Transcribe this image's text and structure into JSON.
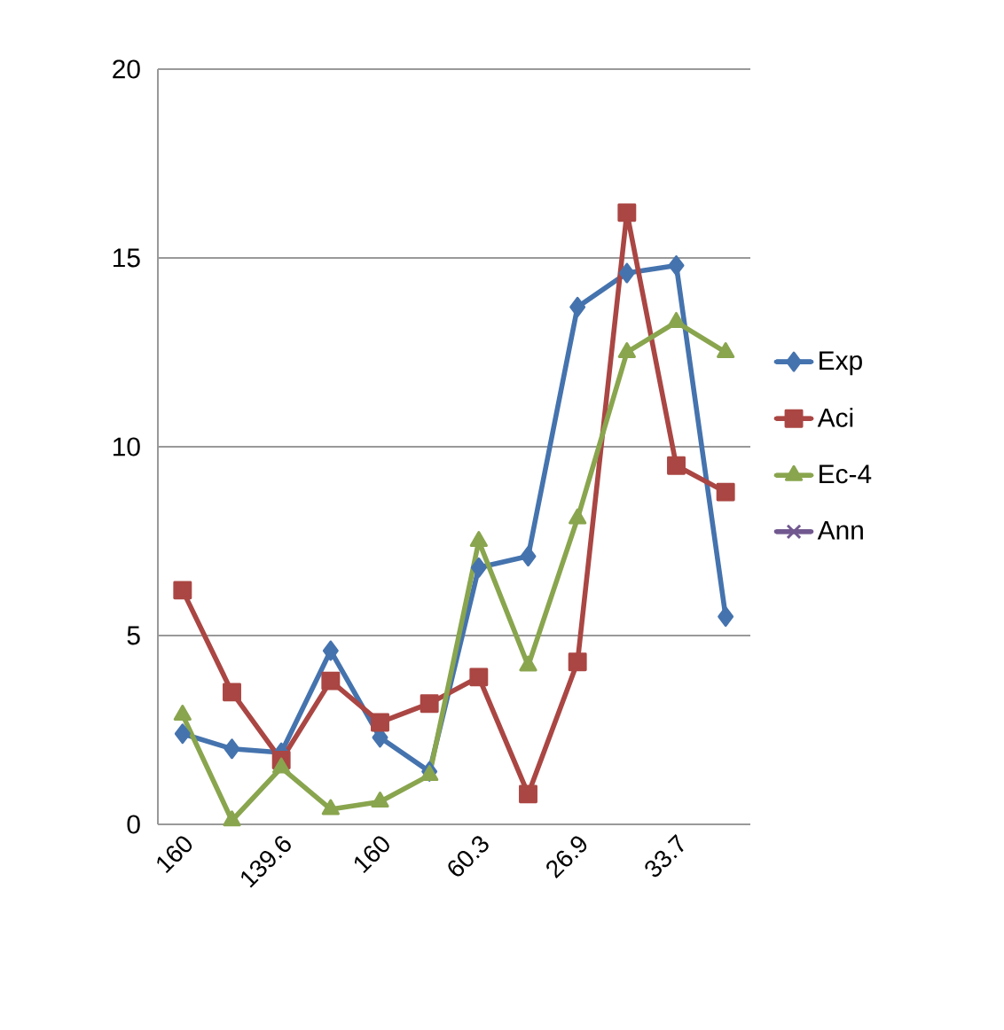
{
  "chart_data": {
    "type": "line",
    "categories": [
      "160",
      null,
      "139.6",
      null,
      "160",
      null,
      "60.3",
      null,
      "26.9",
      null,
      "33.7",
      null
    ],
    "series": [
      {
        "name": "Exp",
        "color": "#4573ae",
        "marker": "diamond",
        "values": [
          2.4,
          2.0,
          1.9,
          4.6,
          2.3,
          1.4,
          6.8,
          7.1,
          13.7,
          14.6,
          14.8,
          5.5
        ]
      },
      {
        "name": "Aci",
        "color": "#aa4643",
        "marker": "square",
        "values": [
          6.2,
          3.5,
          1.7,
          3.8,
          2.7,
          3.2,
          3.9,
          0.8,
          4.3,
          16.2,
          9.5,
          8.8
        ]
      },
      {
        "name": "Ec-4",
        "color": "#89a54e",
        "marker": "triangle",
        "values": [
          2.9,
          0.1,
          1.5,
          0.4,
          0.6,
          1.3,
          7.5,
          4.2,
          8.1,
          12.5,
          13.3,
          12.5
        ]
      },
      {
        "name": "Ann",
        "color": "#71588f",
        "marker": "cross",
        "values": [
          null,
          null,
          null,
          null,
          null,
          null,
          null,
          null,
          null,
          null,
          null,
          null
        ]
      }
    ],
    "ylim": [
      0,
      20
    ],
    "yticks": [
      0,
      5,
      10,
      15,
      20
    ],
    "grid": "y",
    "legend": "right"
  }
}
